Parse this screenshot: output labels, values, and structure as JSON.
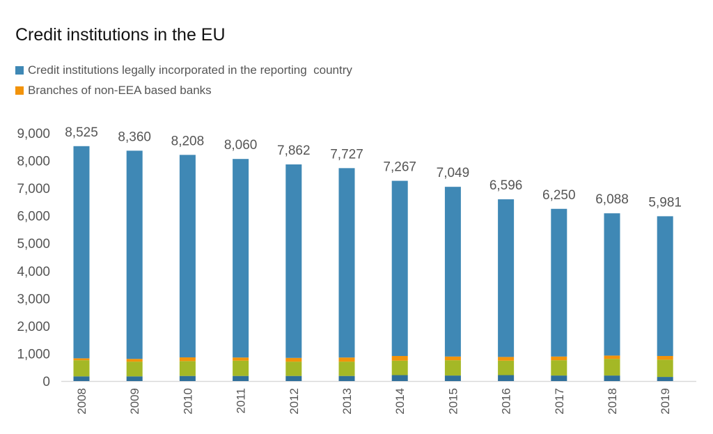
{
  "chart_data": {
    "type": "bar",
    "stacked": true,
    "title": "Credit institutions in the EU",
    "legend": [
      {
        "label": "Credit institutions legally incorporated in the reporting  country",
        "color": "#3f88b5"
      },
      {
        "label": "Branches of non-EEA based banks",
        "color": "#f2930b"
      }
    ],
    "legend_placement": "top-left",
    "categories": [
      "2008",
      "2009",
      "2010",
      "2011",
      "2012",
      "2013",
      "2014",
      "2015",
      "2016",
      "2017",
      "2018",
      "2019"
    ],
    "totals": [
      8525,
      8360,
      8208,
      8060,
      7862,
      7727,
      7267,
      7049,
      6596,
      6250,
      6088,
      5981
    ],
    "total_labels": [
      "8,525",
      "8,360",
      "8,208",
      "8,060",
      "7,862",
      "7,727",
      "7,267",
      "7,049",
      "6,596",
      "6,250",
      "6,088",
      "5,981"
    ],
    "series": [
      {
        "color": "#2f6f9a",
        "values": [
          170,
          170,
          185,
          185,
          185,
          185,
          215,
          200,
          215,
          200,
          200,
          150
        ]
      },
      {
        "color": "#a4b826",
        "values": [
          585,
          535,
          540,
          555,
          520,
          520,
          525,
          555,
          525,
          555,
          605,
          625
        ]
      },
      {
        "name": "Branches of non-EEA based banks",
        "color": "#f2930b",
        "values": [
          70,
          100,
          135,
          115,
          135,
          150,
          170,
          135,
          135,
          135,
          120,
          135
        ]
      },
      {
        "name": "Credit institutions legally incorporated in the reporting  country",
        "color": "#3f88b5",
        "values": [
          7700,
          7555,
          7348,
          7205,
          7022,
          6872,
          6357,
          6159,
          5721,
          5360,
          5163,
          5071
        ]
      }
    ],
    "ylim": [
      0,
      9000
    ],
    "yticks": [
      0,
      1000,
      2000,
      3000,
      4000,
      5000,
      6000,
      7000,
      8000,
      9000
    ],
    "ytick_labels": [
      "0",
      "1,000",
      "2,000",
      "3,000",
      "4,000",
      "5,000",
      "6,000",
      "7,000",
      "8,000",
      "9,000"
    ],
    "grid": false
  }
}
